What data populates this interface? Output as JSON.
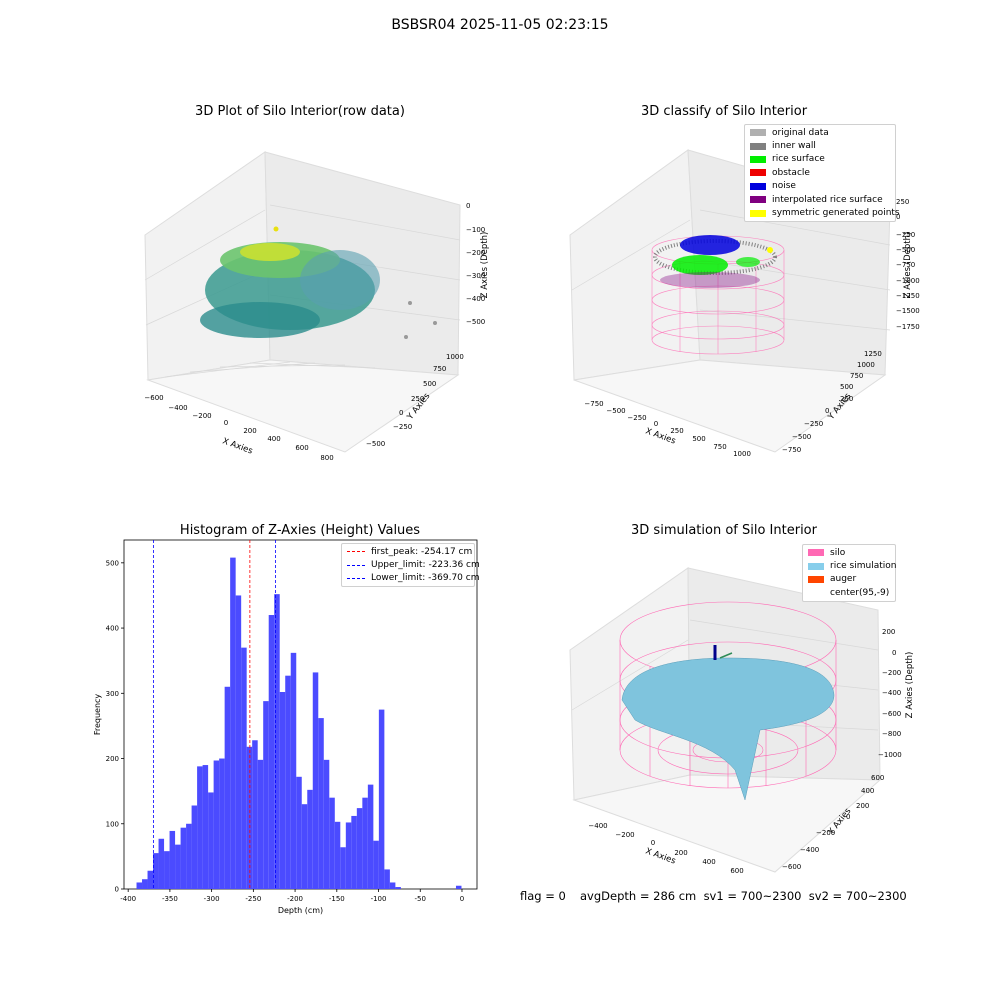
{
  "suptitle": "BSBSR04 2025-11-05 02:23:15",
  "panels": {
    "raw": {
      "title": "3D Plot of Silo Interior(row data)",
      "xlabel": "X Axies",
      "ylabel": "Y Axies",
      "zlabel": "Z Axies (Depth)",
      "xticks": [
        "−600",
        "−400",
        "−200",
        "0",
        "200",
        "400",
        "600",
        "800"
      ],
      "yticks": [
        "−500",
        "−250",
        "0",
        "250",
        "500",
        "750",
        "1000"
      ],
      "zticks": [
        "0",
        "−100",
        "−200",
        "−300",
        "−400",
        "−500"
      ]
    },
    "classify": {
      "title": "3D classify of Silo Interior",
      "xlabel": "X Axies",
      "ylabel": "Y Axies",
      "zlabel": "Z Axies (Depth)",
      "xticks": [
        "−750",
        "−500",
        "−250",
        "0",
        "250",
        "500",
        "750",
        "1000"
      ],
      "yticks": [
        "−750",
        "−500",
        "−250",
        "0",
        "250",
        "500",
        "750",
        "1000",
        "1250"
      ],
      "zticks": [
        "250",
        "0",
        "−250",
        "−500",
        "−750",
        "−1000",
        "−1250",
        "−1500",
        "−1750"
      ],
      "legend": [
        {
          "label": "original data",
          "color": "#b0b0b0"
        },
        {
          "label": "inner wall",
          "color": "#808080"
        },
        {
          "label": "rice surface",
          "color": "#00ee00"
        },
        {
          "label": "obstacle",
          "color": "#ee0000"
        },
        {
          "label": "noise",
          "color": "#0000dd"
        },
        {
          "label": "interpolated rice surface",
          "color": "#800080"
        },
        {
          "label": "symmetric generated points",
          "color": "#ffff00"
        }
      ]
    },
    "simulation": {
      "title": "3D simulation of Silo Interior",
      "xlabel": "X Axies",
      "ylabel": "Y Axies",
      "zlabel": "Z Axies (Depth)",
      "xticks": [
        "−400",
        "−200",
        "0",
        "200",
        "400",
        "600"
      ],
      "yticks": [
        "−600",
        "−400",
        "−200",
        "0",
        "200",
        "400",
        "600"
      ],
      "zticks": [
        "200",
        "0",
        "−200",
        "−400",
        "−600",
        "−800",
        "−1000"
      ],
      "legend": [
        {
          "label": "silo",
          "color": "#ff69b4"
        },
        {
          "label": "rice simulation",
          "color": "#87ceeb"
        },
        {
          "label": "auger",
          "color": "#ff4500"
        },
        {
          "label": "center(95,-9)",
          "color": ""
        }
      ]
    }
  },
  "footer": {
    "flag": "flag = 0",
    "stats": "avgDepth = 286 cm  sv1 = 700~2300  sv2 = 700~2300"
  },
  "chart_data": {
    "type": "bar",
    "title": "Histogram of Z-Axies (Height) Values",
    "xlabel": "Depth (cm)",
    "ylabel": "Frequency",
    "xlim": [
      -400,
      0
    ],
    "ylim": [
      0,
      500
    ],
    "xticks": [
      -400,
      -350,
      -300,
      -250,
      -200,
      -150,
      -100,
      -50,
      0
    ],
    "yticks": [
      0,
      100,
      200,
      300,
      400,
      500
    ],
    "bin_width": 6.6,
    "bin_starts": [
      -390,
      -383.4,
      -376.8,
      -370.2,
      -363.6,
      -357,
      -350.4,
      -343.8,
      -337.2,
      -330.6,
      -324,
      -317.4,
      -310.8,
      -304.2,
      -297.6,
      -291,
      -284.4,
      -277.8,
      -271.2,
      -264.6,
      -258,
      -251.4,
      -244.8,
      -238.2,
      -231.6,
      -225,
      -218.4,
      -211.8,
      -205.2,
      -198.6,
      -192,
      -185.4,
      -178.8,
      -172.2,
      -165.6,
      -159,
      -152.4,
      -145.8,
      -139.2,
      -132.6,
      -126,
      -119.4,
      -112.8,
      -106.2,
      -99.6,
      -93,
      -86.4,
      -79.8,
      -73.2,
      -66.6,
      -60,
      -53.4,
      -46.8,
      -40.2,
      -33.6,
      -27,
      -20.4,
      -13.8,
      -7.2
    ],
    "values": [
      10,
      15,
      28,
      55,
      77,
      58,
      89,
      68,
      94,
      100,
      128,
      188,
      190,
      148,
      197,
      200,
      310,
      508,
      450,
      370,
      218,
      228,
      198,
      288,
      420,
      452,
      302,
      327,
      362,
      172,
      130,
      152,
      332,
      262,
      198,
      140,
      103,
      64,
      102,
      112,
      124,
      140,
      160,
      74,
      275,
      30,
      10,
      3,
      0,
      0,
      0,
      0,
      0,
      0,
      0,
      0,
      0,
      0,
      5
    ],
    "bar_color": "#4b4bff",
    "lines": [
      {
        "label": "first_peak: -254.17 cm",
        "x": -254.17,
        "color": "#ff0000"
      },
      {
        "label": "Upper_limit: -223.36 cm",
        "x": -223.36,
        "color": "#0000ff"
      },
      {
        "label": "Lower_limit: -369.70 cm",
        "x": -369.7,
        "color": "#0000ff"
      }
    ],
    "legend_position": "top-right"
  }
}
